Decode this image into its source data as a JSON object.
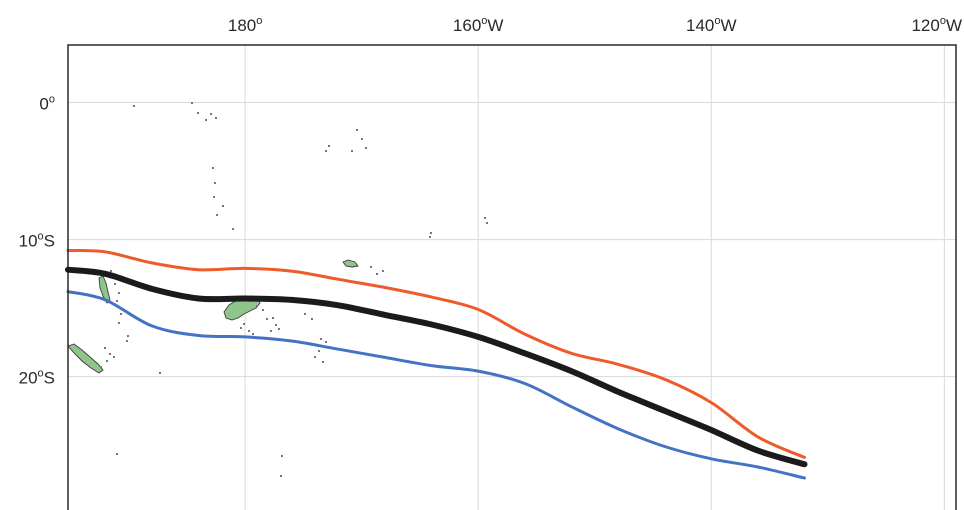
{
  "map": {
    "lon_range": [
      "176°E",
      "119°W"
    ],
    "lat_range": [
      "4°N",
      "30°S"
    ],
    "lon_ticks": [
      {
        "lon": 180,
        "base": "180",
        "sup": "o",
        "suffix": ""
      },
      {
        "lon": -160,
        "base": "160",
        "sup": "o",
        "suffix": "W"
      },
      {
        "lon": -140,
        "base": "140",
        "sup": "o",
        "suffix": "W"
      },
      {
        "lon": -120,
        "base": "120",
        "sup": "o",
        "suffix": "W"
      }
    ],
    "lat_ticks": [
      {
        "lat": 0,
        "base": "0",
        "sup": "o",
        "suffix": ""
      },
      {
        "lat": -10,
        "base": "10",
        "sup": "o",
        "suffix": "S"
      },
      {
        "lat": -20,
        "base": "20",
        "sup": "o",
        "suffix": "S"
      }
    ],
    "grid": true,
    "land_color": "#8fc58a",
    "land": [
      "fiji-islands",
      "vanuatu-islands",
      "new-caledonia",
      "samoa-islands"
    ],
    "series": [
      {
        "color": "#ef5a2a",
        "points": [
          [
            164.8,
            -10.8
          ],
          [
            168,
            -10.9
          ],
          [
            172,
            -11.7
          ],
          [
            176,
            -12.2
          ],
          [
            180,
            -12.1
          ],
          [
            184,
            -12.3
          ],
          [
            188,
            -12.9
          ],
          [
            192,
            -13.5
          ],
          [
            196,
            -14.2
          ],
          [
            200,
            -15.1
          ],
          [
            204,
            -16.9
          ],
          [
            208,
            -18.3
          ],
          [
            212,
            -19.1
          ],
          [
            216,
            -20.2
          ],
          [
            220,
            -21.9
          ],
          [
            224,
            -24.4
          ],
          [
            228,
            -25.9
          ]
        ]
      },
      {
        "color": "#1b1b1b",
        "points": [
          [
            164.8,
            -12.2
          ],
          [
            168,
            -12.5
          ],
          [
            172,
            -13.6
          ],
          [
            176,
            -14.3
          ],
          [
            180,
            -14.3
          ],
          [
            184,
            -14.4
          ],
          [
            188,
            -14.8
          ],
          [
            192,
            -15.5
          ],
          [
            196,
            -16.2
          ],
          [
            200,
            -17.1
          ],
          [
            204,
            -18.3
          ],
          [
            208,
            -19.6
          ],
          [
            212,
            -21.1
          ],
          [
            216,
            -22.5
          ],
          [
            220,
            -23.9
          ],
          [
            224,
            -25.4
          ],
          [
            228,
            -26.4
          ]
        ]
      },
      {
        "color": "#4472c4",
        "points": [
          [
            164.8,
            -13.8
          ],
          [
            168,
            -14.4
          ],
          [
            172,
            -16.3
          ],
          [
            176,
            -17
          ],
          [
            180,
            -17.1
          ],
          [
            184,
            -17.4
          ],
          [
            188,
            -18
          ],
          [
            192,
            -18.6
          ],
          [
            196,
            -19.2
          ],
          [
            200,
            -19.6
          ],
          [
            204,
            -20.5
          ],
          [
            208,
            -22.2
          ],
          [
            212,
            -23.8
          ],
          [
            216,
            -25.1
          ],
          [
            220,
            -26
          ],
          [
            224,
            -26.6
          ],
          [
            228,
            -27.4
          ]
        ]
      }
    ]
  }
}
